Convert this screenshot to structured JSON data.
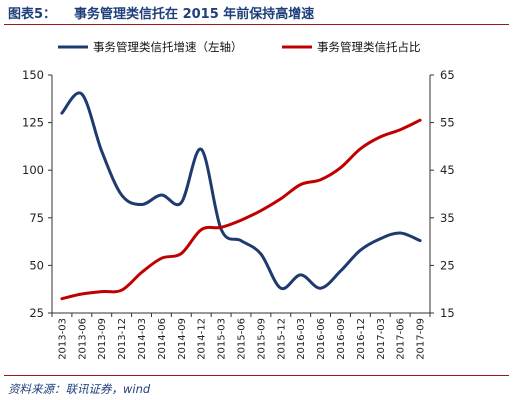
{
  "header": {
    "label": "图表5：",
    "title": "事务管理类信托在 2015 年前保持高增速"
  },
  "footer": {
    "source": "资料来源：联讯证券，wind"
  },
  "colors": {
    "growth": "#1f3a6e",
    "share": "#c00000",
    "rule": "#9a1a1a",
    "title": "#1f3f7a"
  },
  "chart_data": {
    "type": "line",
    "x": [
      "2013-03",
      "2013-06",
      "2013-09",
      "2013-12",
      "2014-03",
      "2014-06",
      "2014-09",
      "2014-12",
      "2015-03",
      "2015-06",
      "2015-09",
      "2015-12",
      "2016-03",
      "2016-06",
      "2016-09",
      "2016-12",
      "2017-03",
      "2017-06",
      "2017-09"
    ],
    "series": [
      {
        "name": "事务管理类信托增速（左轴）",
        "axis": "left",
        "color": "#1f3a6e",
        "values": [
          130,
          140,
          110,
          87,
          82,
          87,
          83,
          111,
          69,
          63,
          56,
          38,
          45,
          38,
          47,
          58,
          64,
          67,
          63
        ]
      },
      {
        "name": "事务管理类信托占比",
        "axis": "right",
        "color": "#c00000",
        "values": [
          18,
          19,
          19.5,
          19.8,
          23.5,
          26.5,
          27.5,
          32.5,
          33,
          34.5,
          36.5,
          39,
          42,
          43,
          45.5,
          49.5,
          52,
          53.5,
          55.5
        ]
      }
    ],
    "y_left": {
      "ticks": [
        25,
        50,
        75,
        100,
        125,
        150
      ],
      "lim": [
        25,
        150
      ]
    },
    "y_right": {
      "ticks": [
        15,
        25,
        35,
        45,
        55,
        65
      ],
      "lim": [
        15,
        65
      ]
    },
    "legend": "top",
    "grid": false
  }
}
